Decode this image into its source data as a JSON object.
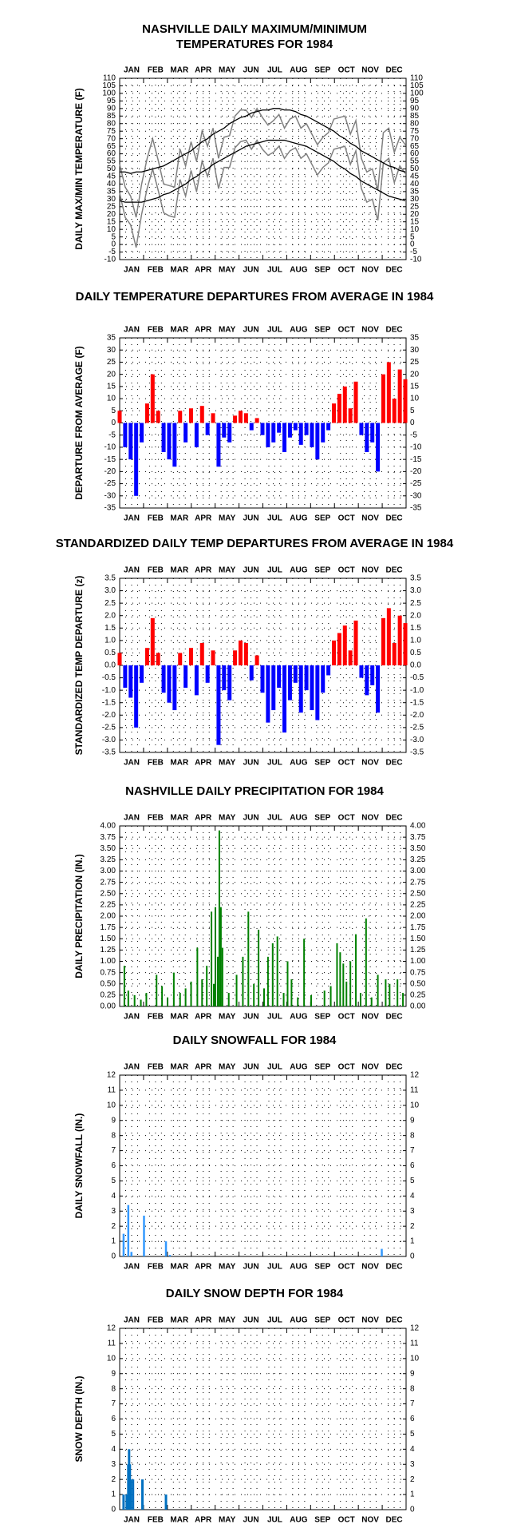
{
  "chart_data": [
    {
      "type": "line",
      "title": [
        "NASHVILLE DAILY MAXIMUM/MINIMUM",
        "TEMPERATURES FOR 1984"
      ],
      "ylabel": "DAILY MAX/MIN TEMPERATURE (F)",
      "categories": [
        "JAN",
        "FEB",
        "MAR",
        "APR",
        "MAY",
        "JUN",
        "JUL",
        "AUG",
        "SEP",
        "OCT",
        "NOV",
        "DEC"
      ],
      "xlim": [
        1,
        366
      ],
      "ylim": [
        -10,
        110
      ],
      "yticks": [
        -10,
        -5,
        0,
        5,
        10,
        15,
        20,
        25,
        30,
        35,
        40,
        45,
        50,
        55,
        60,
        65,
        70,
        75,
        80,
        85,
        90,
        95,
        100,
        105,
        110
      ],
      "x": [
        1,
        8,
        15,
        22,
        29,
        36,
        43,
        50,
        57,
        64,
        71,
        78,
        85,
        92,
        99,
        106,
        113,
        120,
        127,
        134,
        141,
        148,
        155,
        162,
        169,
        176,
        183,
        190,
        197,
        204,
        211,
        218,
        225,
        232,
        239,
        246,
        253,
        260,
        267,
        274,
        281,
        288,
        295,
        302,
        309,
        316,
        323,
        330,
        337,
        344,
        351,
        358,
        365
      ],
      "series": [
        {
          "color": "#808080",
          "values": [
            53,
            38,
            32,
            18,
            40,
            57,
            70,
            56,
            40,
            39,
            38,
            63,
            52,
            68,
            55,
            75,
            65,
            77,
            57,
            71,
            72,
            85,
            89,
            89,
            84,
            90,
            84,
            79,
            82,
            86,
            77,
            83,
            85,
            77,
            80,
            73,
            66,
            71,
            74,
            83,
            84,
            85,
            73,
            82,
            57,
            48,
            50,
            36,
            74,
            77,
            61,
            71,
            66
          ]
        },
        {
          "color": "#808080",
          "values": [
            34,
            18,
            13,
            -2,
            20,
            37,
            50,
            36,
            21,
            19,
            18,
            43,
            32,
            49,
            35,
            55,
            45,
            57,
            37,
            51,
            51,
            64,
            68,
            69,
            63,
            69,
            63,
            59,
            61,
            65,
            57,
            62,
            64,
            57,
            60,
            53,
            46,
            51,
            54,
            63,
            64,
            65,
            53,
            62,
            37,
            28,
            30,
            16,
            54,
            57,
            41,
            52,
            47
          ]
        },
        {
          "color": "#000000",
          "values": [
            48,
            48,
            47,
            48,
            48,
            49,
            50,
            51,
            52,
            54,
            56,
            58,
            60,
            62,
            65,
            68,
            70,
            73,
            75,
            77,
            80,
            82,
            84,
            85,
            87,
            88,
            89,
            89,
            90,
            90,
            89,
            89,
            88,
            86,
            85,
            83,
            81,
            79,
            77,
            75,
            72,
            70,
            67,
            65,
            62,
            60,
            58,
            56,
            54,
            52,
            51,
            49,
            48
          ]
        },
        {
          "color": "#000000",
          "values": [
            29,
            28,
            28,
            28,
            28,
            29,
            30,
            31,
            33,
            34,
            36,
            38,
            40,
            43,
            45,
            48,
            50,
            53,
            55,
            57,
            59,
            61,
            63,
            65,
            66,
            67,
            68,
            69,
            69,
            69,
            69,
            68,
            67,
            66,
            65,
            63,
            61,
            59,
            57,
            55,
            52,
            50,
            47,
            45,
            42,
            40,
            38,
            36,
            34,
            32,
            31,
            30,
            29
          ]
        }
      ]
    },
    {
      "type": "bar",
      "title": "DAILY TEMPERATURE DEPARTURES FROM AVERAGE IN 1984",
      "ylabel": "DEPARTURE FROM AVERAGE (F)",
      "categories": [
        "JAN",
        "FEB",
        "MAR",
        "APR",
        "MAY",
        "JUN",
        "JUL",
        "AUG",
        "SEP",
        "OCT",
        "NOV",
        "DEC"
      ],
      "xlim": [
        1,
        366
      ],
      "ylim": [
        -35,
        35
      ],
      "yticks": [
        -35,
        -30,
        -25,
        -20,
        -15,
        -10,
        -5,
        0,
        5,
        10,
        15,
        20,
        25,
        30,
        35
      ],
      "positive_color": "#ff0000",
      "negative_color": "#0000ff",
      "x": [
        1,
        8,
        15,
        22,
        29,
        36,
        43,
        50,
        57,
        64,
        71,
        78,
        85,
        92,
        99,
        106,
        113,
        120,
        127,
        134,
        141,
        148,
        155,
        162,
        169,
        176,
        183,
        190,
        197,
        204,
        211,
        218,
        225,
        232,
        239,
        246,
        253,
        260,
        267,
        274,
        281,
        288,
        295,
        302,
        309,
        316,
        323,
        330,
        337,
        344,
        351,
        358,
        365
      ],
      "values": [
        5,
        -10,
        -15,
        -30,
        -8,
        8,
        20,
        5,
        -12,
        -15,
        -18,
        5,
        -8,
        6,
        -10,
        7,
        -5,
        4,
        -18,
        -6,
        -8,
        3,
        5,
        4,
        -3,
        2,
        -5,
        -10,
        -8,
        -4,
        -12,
        -6,
        -3,
        -9,
        -5,
        -10,
        -15,
        -8,
        -3,
        8,
        12,
        15,
        6,
        17,
        -5,
        -12,
        -8,
        -20,
        20,
        25,
        10,
        22,
        18
      ]
    },
    {
      "type": "bar",
      "title": "STANDARDIZED DAILY TEMP DEPARTURES FROM AVERAGE IN 1984",
      "ylabel": "STANDARDIZED TEMP DEPARTURE (z)",
      "categories": [
        "JAN",
        "FEB",
        "MAR",
        "APR",
        "MAY",
        "JUN",
        "JUL",
        "AUG",
        "SEP",
        "OCT",
        "NOV",
        "DEC"
      ],
      "xlim": [
        1,
        366
      ],
      "ylim": [
        -3.5,
        3.5
      ],
      "yticks": [
        -3.5,
        {
          "value": -3,
          "label": "-3.0"
        },
        -2.5,
        {
          "value": -2,
          "label": "-2.0"
        },
        -1.5,
        {
          "value": -1,
          "label": "-1.0"
        },
        -0.5,
        {
          "value": 0,
          "label": "0.0"
        },
        0.5,
        {
          "value": 1,
          "label": "1.0"
        },
        1.5,
        {
          "value": 2,
          "label": "2.0"
        },
        2.5,
        {
          "value": 3,
          "label": "3.0"
        },
        3.5
      ],
      "positive_color": "#ff0000",
      "negative_color": "#0000ff",
      "x": [
        1,
        8,
        15,
        22,
        29,
        36,
        43,
        50,
        57,
        64,
        71,
        78,
        85,
        92,
        99,
        106,
        113,
        120,
        127,
        134,
        141,
        148,
        155,
        162,
        169,
        176,
        183,
        190,
        197,
        204,
        211,
        218,
        225,
        232,
        239,
        246,
        253,
        260,
        267,
        274,
        281,
        288,
        295,
        302,
        309,
        316,
        323,
        330,
        337,
        344,
        351,
        358,
        365
      ],
      "values": [
        0.5,
        -0.9,
        -1.3,
        -2.5,
        -0.7,
        0.7,
        1.9,
        0.5,
        -1.1,
        -1.5,
        -1.8,
        0.5,
        -0.9,
        0.7,
        -1.2,
        0.9,
        -0.7,
        0.6,
        -3.2,
        -1.0,
        -1.4,
        0.6,
        1.0,
        0.9,
        -0.6,
        0.4,
        -1.1,
        -2.3,
        -1.8,
        -0.9,
        -2.7,
        -1.4,
        -0.7,
        -1.9,
        -1.0,
        -1.8,
        -2.2,
        -1.1,
        -0.4,
        1.0,
        1.3,
        1.6,
        0.6,
        1.8,
        -0.5,
        -1.2,
        -0.8,
        -1.9,
        1.9,
        2.3,
        0.9,
        2.0,
        1.7
      ]
    },
    {
      "type": "bar",
      "title": "NASHVILLE DAILY PRECIPITATION FOR 1984",
      "ylabel": "DAILY PRECIPITATION (IN.)",
      "categories": [
        "JAN",
        "FEB",
        "MAR",
        "APR",
        "MAY",
        "JUN",
        "JUL",
        "AUG",
        "SEP",
        "OCT",
        "NOV",
        "DEC"
      ],
      "xlim": [
        1,
        366
      ],
      "ylim": [
        0,
        4
      ],
      "yticks": [
        {
          "value": 0,
          "label": "0.00"
        },
        0.25,
        {
          "value": 0.5,
          "label": "0.50"
        },
        0.75,
        {
          "value": 1,
          "label": "1.00"
        },
        1.25,
        {
          "value": 1.5,
          "label": "1.50"
        },
        1.75,
        {
          "value": 2,
          "label": "2.00"
        },
        2.25,
        {
          "value": 2.5,
          "label": "2.50"
        },
        2.75,
        {
          "value": 3,
          "label": "3.00"
        },
        3.25,
        {
          "value": 3.5,
          "label": "3.50"
        },
        3.75,
        {
          "value": 4,
          "label": "4.00"
        }
      ],
      "color": "#008000",
      "x": [
        7,
        12,
        20,
        28,
        35,
        48,
        55,
        62,
        70,
        78,
        85,
        92,
        100,
        106,
        112,
        118,
        121,
        123,
        126,
        128,
        130,
        132,
        140,
        150,
        158,
        165,
        172,
        178,
        185,
        190,
        196,
        202,
        210,
        215,
        220,
        228,
        236,
        245,
        262,
        270,
        278,
        282,
        286,
        290,
        295,
        302,
        308,
        315,
        322,
        330,
        340,
        345,
        355,
        362
      ],
      "values": [
        0.9,
        0.35,
        0.25,
        0.15,
        0.3,
        0.7,
        0.45,
        0.2,
        0.75,
        0.3,
        0.4,
        0.55,
        1.3,
        0.6,
        0.9,
        2.1,
        0.5,
        2.2,
        1.1,
        3.9,
        2.2,
        1.3,
        0.3,
        0.7,
        1.1,
        2.1,
        0.5,
        1.7,
        0.4,
        1.1,
        1.4,
        1.55,
        0.3,
        1.0,
        0.6,
        0.2,
        1.5,
        0.25,
        0.35,
        0.45,
        1.4,
        1.2,
        0.95,
        0.55,
        1.0,
        1.6,
        0.3,
        1.95,
        0.2,
        0.7,
        0.6,
        0.5,
        0.6,
        0.3
      ]
    },
    {
      "type": "bar",
      "title": "DAILY SNOWFALL FOR 1984",
      "ylabel": "DAILY SNOWFALL (IN.)",
      "categories": [
        "JAN",
        "FEB",
        "MAR",
        "APR",
        "MAY",
        "JUN",
        "JUL",
        "AUG",
        "SEP",
        "OCT",
        "NOV",
        "DEC"
      ],
      "xlim": [
        1,
        366
      ],
      "ylim": [
        0,
        12
      ],
      "yticks": [
        0,
        1,
        2,
        3,
        4,
        5,
        6,
        7,
        8,
        9,
        10,
        11,
        12
      ],
      "color": "#3399ff",
      "x": [
        6,
        12,
        16,
        32,
        60,
        65,
        335
      ],
      "values": [
        1.5,
        3.4,
        0.3,
        2.7,
        1.0,
        0.1,
        0.5
      ]
    },
    {
      "type": "bar",
      "title": "DAILY SNOW DEPTH FOR 1984",
      "ylabel": "SNOW DEPTH (IN.)",
      "categories": [
        "JAN",
        "FEB",
        "MAR",
        "APR",
        "MAY",
        "JUN",
        "JUL",
        "AUG",
        "SEP",
        "OCT",
        "NOV",
        "DEC"
      ],
      "xlim": [
        1,
        366
      ],
      "ylim": [
        0,
        12
      ],
      "yticks": [
        0,
        1,
        2,
        3,
        4,
        5,
        6,
        7,
        8,
        9,
        10,
        11,
        12
      ],
      "color": "#0070c0",
      "x": [
        6,
        10,
        12,
        13,
        14,
        15,
        18,
        30,
        60
      ],
      "values": [
        1,
        1,
        3,
        4,
        3,
        2,
        2,
        2,
        1
      ]
    }
  ]
}
